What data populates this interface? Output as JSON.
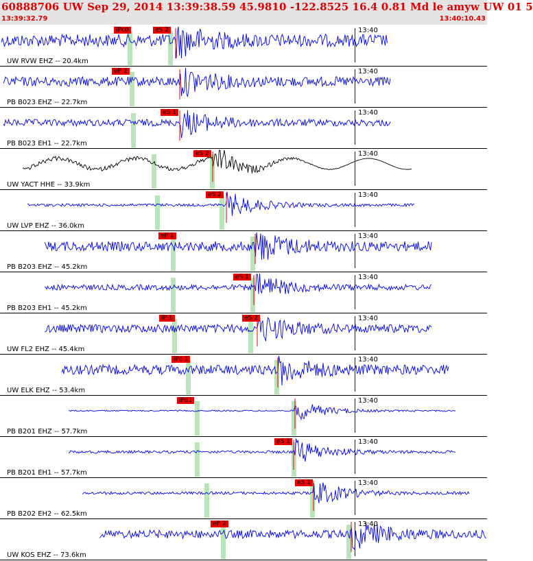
{
  "header": {
    "title": "60888706 UW Sep 29, 2014 13:39:38.59    45.9810 -122.8525 16.4 0.81 Md le amyw UW 01    5",
    "time_start": "13:39:32.79",
    "time_end": "13:40:10.43"
  },
  "colors": {
    "trace": "#0000ee",
    "trace_alt": "#000000",
    "pick": "#ee0000",
    "band": "#b8e6b8",
    "header_bg": "#e4e4e4"
  },
  "traces": [
    {
      "label": "UW RVW EHZ -- 20.4km",
      "time_label": "13:40",
      "picks": [
        "iPc0",
        "eS 2"
      ]
    },
    {
      "label": "PB B023 EHZ -- 22.7km",
      "time_label": "13:40",
      "picks": [
        "eP 2"
      ]
    },
    {
      "label": "PB B023 EH1 -- 22.7km",
      "time_label": "13:40",
      "picks": [
        "eS 1"
      ]
    },
    {
      "label": "UW YACT HHE -- 33.9km",
      "time_label": "13:40",
      "picks": [
        "eS 2"
      ]
    },
    {
      "label": "UW LVP EHZ -- 36.0km",
      "time_label": "13:40",
      "picks": [
        "eS 2"
      ]
    },
    {
      "label": "PB B203 EHZ -- 45.2km",
      "time_label": "13:40",
      "picks": [
        "eP 1"
      ]
    },
    {
      "label": "PB B203 EH1 -- 45.2km",
      "time_label": "13:40",
      "picks": [
        "eS 1"
      ]
    },
    {
      "label": "UW FL2 EHZ -- 45.4km",
      "time_label": "13:40",
      "picks": [
        "iP 1",
        "eS 2"
      ]
    },
    {
      "label": "UW ELK EHZ -- 53.4km",
      "time_label": "13:40",
      "picks": [
        "iPc 1"
      ]
    },
    {
      "label": "PB B201 EHZ -- 57.7km",
      "time_label": "13:40",
      "picks": [
        "iPd1"
      ]
    },
    {
      "label": "PB B201 EH1 -- 57.7km",
      "time_label": "13:40",
      "picks": [
        "eS 1"
      ]
    },
    {
      "label": "PB B202 EH2 -- 62.5km",
      "time_label": "13:40",
      "picks": [
        "eS 1"
      ]
    },
    {
      "label": "UW KOS EHZ -- 73.6km",
      "time_label": "13:40",
      "picks": [
        "eP 2"
      ]
    }
  ]
}
